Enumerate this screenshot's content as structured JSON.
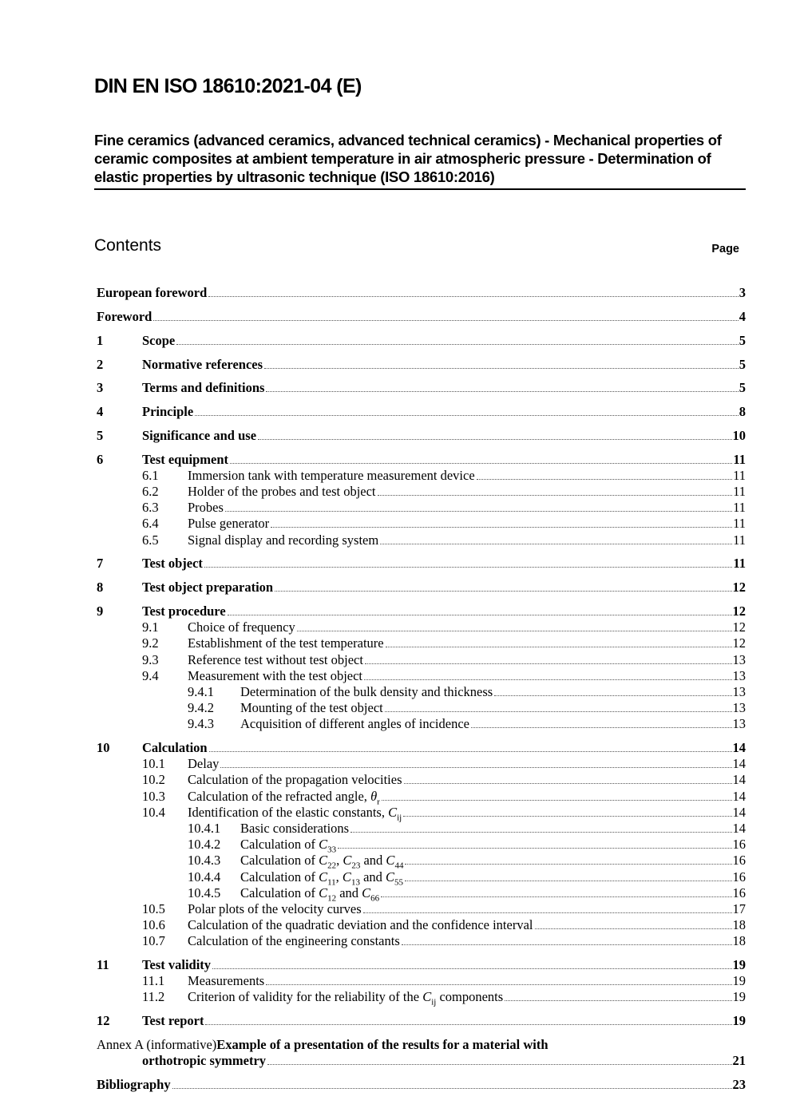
{
  "header": {
    "doc_id": "DIN EN ISO 18610:2021-04 (E)",
    "doc_title": "Fine ceramics (advanced ceramics, advanced technical ceramics) - Mechanical properties of ceramic composites at ambient temperature in air atmospheric pressure - Determination of elastic properties by ultrasonic technique (ISO 18610:2016)"
  },
  "contents": {
    "heading": "Contents",
    "page_label": "Page"
  },
  "toc": [
    {
      "level": "fm",
      "num": "",
      "title": [
        "European foreword"
      ],
      "page": "3"
    },
    {
      "level": "fm",
      "num": "",
      "title": [
        "Foreword"
      ],
      "page": "4"
    },
    {
      "level": "1",
      "num": "1",
      "title": [
        "Scope"
      ],
      "page": "5"
    },
    {
      "level": "1",
      "num": "2",
      "title": [
        "Normative references"
      ],
      "page": "5"
    },
    {
      "level": "1",
      "num": "3",
      "title": [
        "Terms and definitions"
      ],
      "page": "5"
    },
    {
      "level": "1",
      "num": "4",
      "title": [
        "Principle"
      ],
      "page": "8"
    },
    {
      "level": "1",
      "num": "5",
      "title": [
        "Significance and use"
      ],
      "page": "10"
    },
    {
      "level": "1",
      "num": "6",
      "title": [
        "Test equipment"
      ],
      "page": "11"
    },
    {
      "level": "2",
      "num": "6.1",
      "title": [
        "Immersion tank with temperature measurement device"
      ],
      "page": "11"
    },
    {
      "level": "2",
      "num": "6.2",
      "title": [
        "Holder of the probes and test object"
      ],
      "page": "11"
    },
    {
      "level": "2",
      "num": "6.3",
      "title": [
        "Probes"
      ],
      "page": "11"
    },
    {
      "level": "2",
      "num": "6.4",
      "title": [
        "Pulse generator"
      ],
      "page": "11"
    },
    {
      "level": "2",
      "num": "6.5",
      "title": [
        "Signal display and recording system"
      ],
      "page": "11"
    },
    {
      "level": "1",
      "num": "7",
      "title": [
        "Test object"
      ],
      "page": "11"
    },
    {
      "level": "1",
      "num": "8",
      "title": [
        "Test object preparation"
      ],
      "page": "12"
    },
    {
      "level": "1",
      "num": "9",
      "title": [
        "Test procedure"
      ],
      "page": "12"
    },
    {
      "level": "2",
      "num": "9.1",
      "title": [
        "Choice of frequency"
      ],
      "page": "12"
    },
    {
      "level": "2",
      "num": "9.2",
      "title": [
        "Establishment of the test temperature"
      ],
      "page": "12"
    },
    {
      "level": "2",
      "num": "9.3",
      "title": [
        "Reference test without test object"
      ],
      "page": "13"
    },
    {
      "level": "2",
      "num": "9.4",
      "title": [
        "Measurement with the test object"
      ],
      "page": "13"
    },
    {
      "level": "3",
      "num": "9.4.1",
      "title": [
        "Determination of the bulk density and thickness"
      ],
      "page": "13"
    },
    {
      "level": "3",
      "num": "9.4.2",
      "title": [
        "Mounting of the test object"
      ],
      "page": "13"
    },
    {
      "level": "3",
      "num": "9.4.3",
      "title": [
        "Acquisition of different angles of incidence"
      ],
      "page": "13"
    },
    {
      "level": "1",
      "num": "10",
      "title": [
        "Calculation"
      ],
      "page": "14"
    },
    {
      "level": "2",
      "num": "10.1",
      "title": [
        "Delay"
      ],
      "page": "14"
    },
    {
      "level": "2",
      "num": "10.2",
      "title": [
        "Calculation of the propagation velocities"
      ],
      "page": "14"
    },
    {
      "level": "2",
      "num": "10.3",
      "title": [
        "Calculation of the refracted angle, ",
        {
          "m": "θ",
          "sub": "r"
        }
      ],
      "page": "14"
    },
    {
      "level": "2",
      "num": "10.4",
      "title": [
        "Identification of the elastic constants, ",
        {
          "m": "C",
          "sub": "ij"
        }
      ],
      "page": "14"
    },
    {
      "level": "3",
      "num": "10.4.1",
      "title": [
        "Basic considerations"
      ],
      "page": "14"
    },
    {
      "level": "3",
      "num": "10.4.2",
      "title": [
        "Calculation of ",
        {
          "m": "C",
          "sub": "33"
        }
      ],
      "page": "16"
    },
    {
      "level": "3",
      "num": "10.4.3",
      "title": [
        "Calculation of ",
        {
          "m": "C",
          "sub": "22"
        },
        ", ",
        {
          "m": "C",
          "sub": "23"
        },
        " and ",
        {
          "m": "C",
          "sub": "44"
        }
      ],
      "page": "16"
    },
    {
      "level": "3",
      "num": "10.4.4",
      "title": [
        "Calculation of ",
        {
          "m": "C",
          "sub": "11"
        },
        ", ",
        {
          "m": "C",
          "sub": "13"
        },
        " and ",
        {
          "m": "C",
          "sub": "55"
        }
      ],
      "page": "16"
    },
    {
      "level": "3",
      "num": "10.4.5",
      "title": [
        "Calculation of ",
        {
          "m": "C",
          "sub": "12"
        },
        " and ",
        {
          "m": "C",
          "sub": "66"
        }
      ],
      "page": "16"
    },
    {
      "level": "2",
      "num": "10.5",
      "title": [
        "Polar plots of the velocity curves"
      ],
      "page": "17"
    },
    {
      "level": "2",
      "num": "10.6",
      "title": [
        "Calculation of the quadratic deviation and the confidence interval"
      ],
      "page": "18"
    },
    {
      "level": "2",
      "num": "10.7",
      "title": [
        "Calculation of the engineering constants"
      ],
      "page": "18"
    },
    {
      "level": "1",
      "num": "11",
      "title": [
        "Test validity"
      ],
      "page": "19"
    },
    {
      "level": "2",
      "num": "11.1",
      "title": [
        "Measurements"
      ],
      "page": "19"
    },
    {
      "level": "2",
      "num": "11.2",
      "title": [
        "Criterion of validity for the reliability of the ",
        {
          "m": "C",
          "sub": "ij"
        },
        " components"
      ],
      "page": "19"
    },
    {
      "level": "1",
      "num": "12",
      "title": [
        "Test report"
      ],
      "page": "19"
    }
  ],
  "annex": {
    "prefix": "Annex A (informative) ",
    "line1": "Example of a presentation of the results for a material with",
    "line2": "orthotropic symmetry",
    "page": "21"
  },
  "bibliography": {
    "title": "Bibliography",
    "page": "23"
  }
}
